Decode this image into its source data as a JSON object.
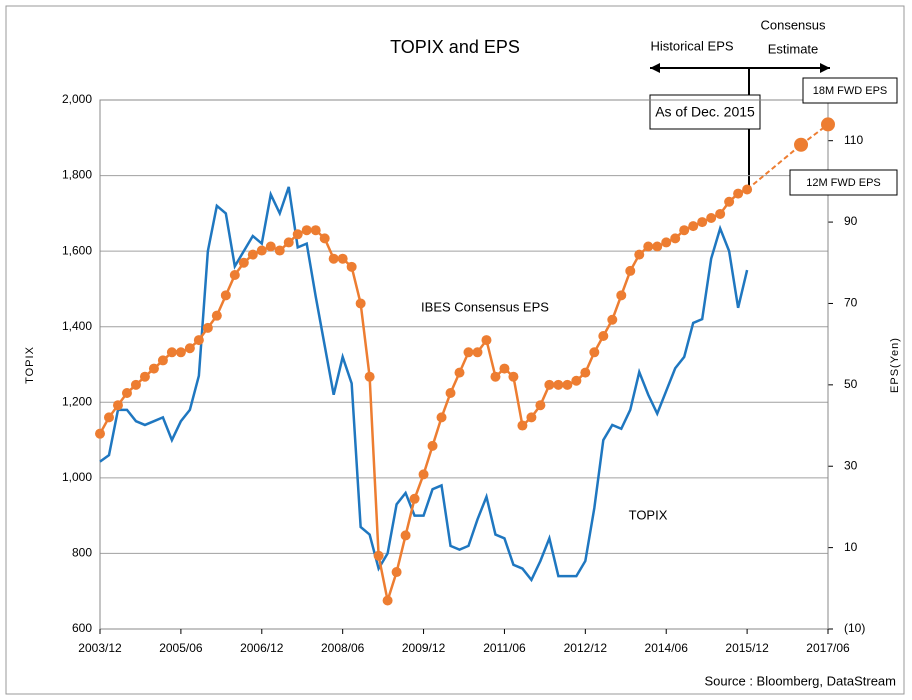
{
  "chart_data": {
    "type": "line",
    "title": "TOPIX and EPS",
    "ylabel": "TOPIX",
    "y2label": "EPS(Yen)",
    "source": "Source : Bloomberg, DataStream",
    "annotations": {
      "historical": "Historical EPS",
      "consensus_1": "Consensus",
      "consensus_2": "Estimate",
      "as_of": "As of Dec. 2015"
    },
    "xlim": [
      "2003/12",
      "2017/06"
    ],
    "xticks": [
      "2003/12",
      "2005/06",
      "2006/12",
      "2008/06",
      "2009/12",
      "2011/06",
      "2012/12",
      "2014/06",
      "2015/12",
      "2017/06"
    ],
    "ylim": [
      600,
      2000
    ],
    "yticks": [
      600,
      800,
      {
        "value": 1000,
        "label": "1,000"
      },
      {
        "value": 1200,
        "label": "1,200"
      },
      {
        "value": 1400,
        "label": "1,400"
      },
      {
        "value": 1600,
        "label": "1,600"
      },
      {
        "value": 1800,
        "label": "1,800"
      },
      {
        "value": 2000,
        "label": "2,000"
      }
    ],
    "y2lim": [
      -10,
      120
    ],
    "y2ticks": [
      {
        "value": -10,
        "label": "(10)"
      },
      10,
      30,
      50,
      70,
      90,
      110
    ],
    "negative_label_color": "#ff0000",
    "grid": true,
    "x": [
      "2003/12",
      "2004/02",
      "2004/04",
      "2004/06",
      "2004/08",
      "2004/10",
      "2004/12",
      "2005/02",
      "2005/04",
      "2005/06",
      "2005/08",
      "2005/10",
      "2005/12",
      "2006/02",
      "2006/04",
      "2006/06",
      "2006/08",
      "2006/10",
      "2006/12",
      "2007/02",
      "2007/04",
      "2007/06",
      "2007/08",
      "2007/10",
      "2007/12",
      "2008/02",
      "2008/04",
      "2008/06",
      "2008/08",
      "2008/10",
      "2008/12",
      "2009/02",
      "2009/04",
      "2009/06",
      "2009/08",
      "2009/10",
      "2009/12",
      "2010/02",
      "2010/04",
      "2010/06",
      "2010/08",
      "2010/10",
      "2010/12",
      "2011/02",
      "2011/04",
      "2011/06",
      "2011/08",
      "2011/10",
      "2011/12",
      "2012/02",
      "2012/04",
      "2012/06",
      "2012/08",
      "2012/10",
      "2012/12",
      "2013/02",
      "2013/04",
      "2013/06",
      "2013/08",
      "2013/10",
      "2013/12",
      "2014/02",
      "2014/04",
      "2014/06",
      "2014/08",
      "2014/10",
      "2014/12",
      "2015/02",
      "2015/04",
      "2015/06",
      "2015/08",
      "2015/10",
      "2015/12"
    ],
    "series": [
      {
        "name": "TOPIX",
        "color": "#1f77c0",
        "markers": false,
        "values": [
          1043,
          1060,
          1180,
          1180,
          1150,
          1140,
          1150,
          1160,
          1100,
          1150,
          1180,
          1270,
          1600,
          1720,
          1700,
          1560,
          1600,
          1640,
          1620,
          1750,
          1700,
          1770,
          1610,
          1620,
          1480,
          1350,
          1220,
          1320,
          1250,
          870,
          850,
          760,
          800,
          930,
          960,
          900,
          900,
          970,
          980,
          820,
          810,
          820,
          890,
          950,
          850,
          840,
          770,
          760,
          730,
          780,
          840,
          740,
          740,
          740,
          780,
          920,
          1100,
          1140,
          1130,
          1180,
          1280,
          1220,
          1170,
          1230,
          1290,
          1320,
          1410,
          1420,
          1580,
          1660,
          1600,
          1450,
          1550
        ]
      },
      {
        "name": "IBES Consensus EPS",
        "color": "#ed7d31",
        "markers": true,
        "axis": "y2",
        "values": [
          38,
          42,
          45,
          48,
          50,
          52,
          54,
          56,
          58,
          58,
          59,
          61,
          64,
          67,
          72,
          77,
          80,
          82,
          83,
          84,
          83,
          85,
          87,
          88,
          88,
          86,
          81,
          81,
          79,
          70,
          52,
          8,
          -3,
          4,
          13,
          22,
          28,
          35,
          42,
          48,
          53,
          58,
          58,
          61,
          52,
          54,
          52,
          40,
          42,
          45,
          50,
          50,
          50,
          51,
          53,
          58,
          62,
          66,
          72,
          78,
          82,
          84,
          84,
          85,
          86,
          88,
          89,
          90,
          91,
          92,
          95,
          97,
          98
        ]
      }
    ],
    "forecast": {
      "color": "#ed7d31",
      "axis": "y2",
      "dashed": true,
      "x": [
        "2016/12",
        "2017/06"
      ],
      "values": [
        109,
        114
      ],
      "point_labels": [
        "12M FWD EPS",
        "18M FWD EPS"
      ]
    }
  }
}
